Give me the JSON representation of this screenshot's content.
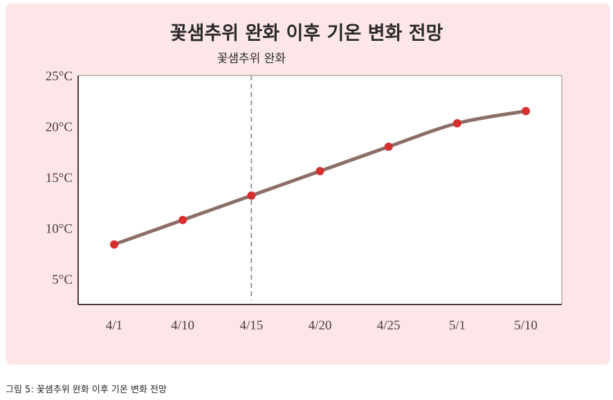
{
  "card": {
    "background": "#fde6e8"
  },
  "caption": "그림 5: 꽃샘추위 완화 이후 기온 변화 전망",
  "chart_data": {
    "type": "line",
    "title": "꽃샘추위 완화 이후 기온 변화 전망",
    "xlabel": "",
    "ylabel": "",
    "categories": [
      "4/1",
      "4/10",
      "4/15",
      "4/20",
      "4/25",
      "5/1",
      "5/10"
    ],
    "series": [
      {
        "values": [
          8.4,
          10.8,
          13.2,
          15.6,
          18.0,
          20.3,
          21.5
        ]
      }
    ],
    "yticks": [
      5,
      10,
      15,
      20,
      25
    ],
    "ytick_labels": [
      "5°C",
      "10°C",
      "15°C",
      "20°C",
      "25°C"
    ],
    "ylim": [
      2.5,
      25
    ],
    "annotation": {
      "category": "4/15",
      "label": "꽃샘추위 완화"
    },
    "grid": false,
    "legend": "none",
    "colors": {
      "line": "#8b6f66",
      "point": "#d62f30",
      "annotation_line": "#8a8a8a",
      "axis": "#4a3a36"
    }
  }
}
